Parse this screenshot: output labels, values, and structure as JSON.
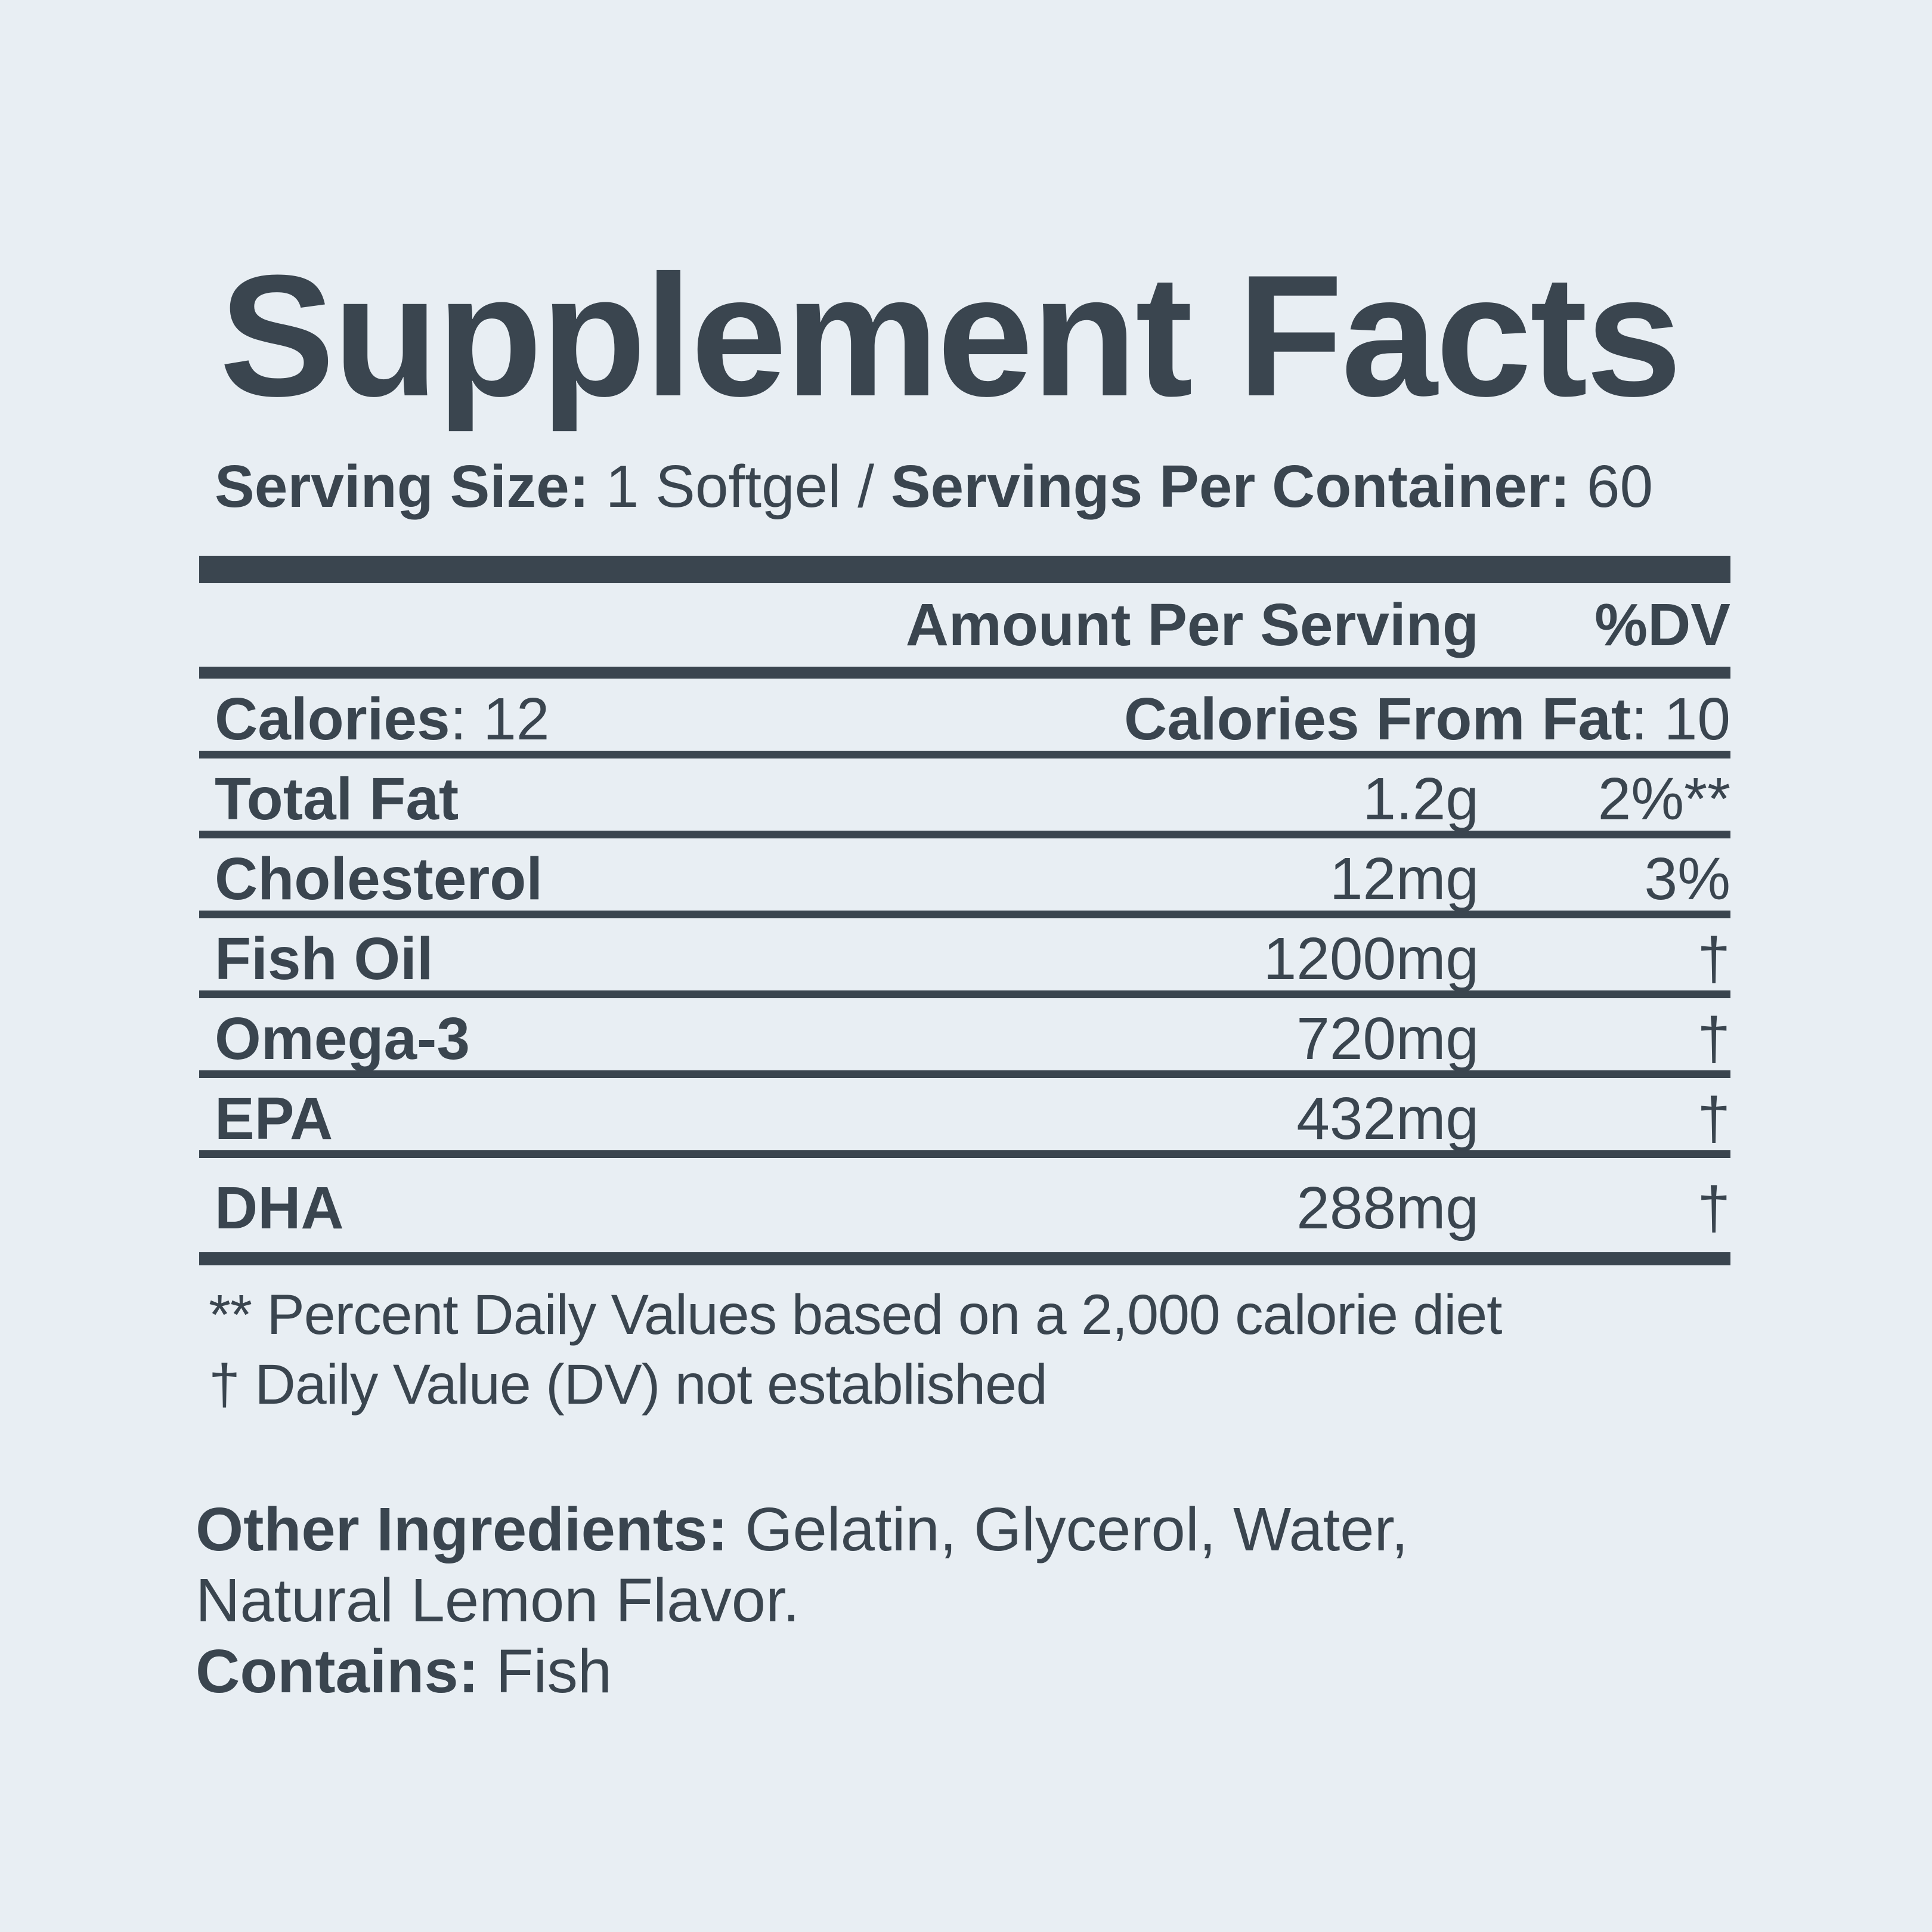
{
  "title": "Supplement Facts",
  "serving": {
    "size_label": "Serving Size:",
    "size_value": " 1 Softgel / ",
    "count_label": "Servings Per Container:",
    "count_value": " 60"
  },
  "table": {
    "amount_header": "Amount Per Serving",
    "dv_header": "%DV",
    "calories": {
      "label": "Calories",
      "value": ": 12",
      "right_label": "Calories From Fat",
      "right_value": ": 10"
    },
    "rows": [
      {
        "name": "Total Fat",
        "amount": "1.2g",
        "dv": "2%**"
      },
      {
        "name": "Cholesterol",
        "amount": "12mg",
        "dv": "3%"
      },
      {
        "name": "Fish Oil",
        "amount": "1200mg",
        "dv": "†"
      },
      {
        "name": "Omega-3",
        "amount": "720mg",
        "dv": "†"
      },
      {
        "name": "EPA",
        "amount": "432mg",
        "dv": "†"
      },
      {
        "name": "DHA",
        "amount": "288mg",
        "dv": "†"
      }
    ]
  },
  "footnotes": {
    "line1": "** Percent Daily Values based on a 2,000 calorie diet",
    "line2": "† Daily Value (DV) not established"
  },
  "other_ingredients": {
    "label": "Other Ingredients:",
    "line1_rest": " Gelatin, Glycerol, Water,",
    "line2": "Natural Lemon Flavor."
  },
  "contains": {
    "label": "Contains:",
    "value": " Fish"
  },
  "colors": {
    "text": "#3a454f",
    "background": "#e8eef3"
  }
}
